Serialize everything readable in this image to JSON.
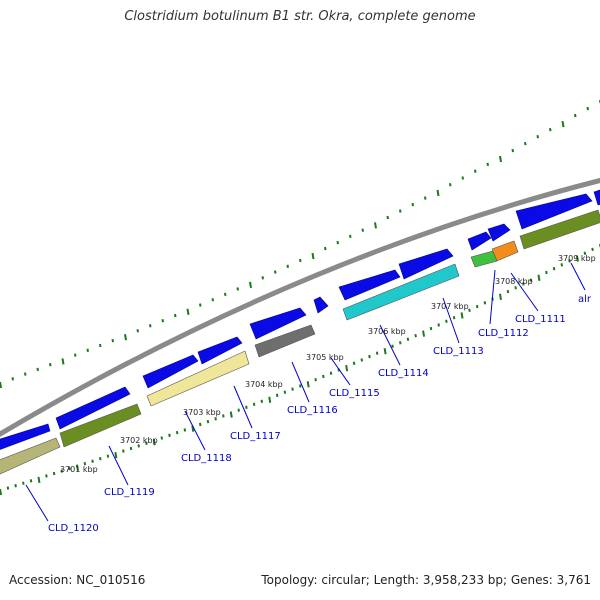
{
  "title": "Clostridium botulinum B1 str. Okra, complete genome",
  "footer": {
    "accession": "Accession: NC_010516",
    "summary": "Topology: circular; Length: 3,958,233 bp; Genes: 3,761"
  },
  "colors": {
    "backbone": "#8a8a8a",
    "tick": "#1a7a1a",
    "cds_forward": "#0a0ae6",
    "label_line": "#0000cc"
  },
  "kbp_labels": [
    "3701 kbp",
    "3702 kbp",
    "3703 kbp",
    "3704 kbp",
    "3705 kbp",
    "3706 kbp",
    "3707 kbp",
    "3708 kbp",
    "3709 kbp"
  ],
  "genes": [
    {
      "label": "CLD_1120",
      "color": "#b5b577"
    },
    {
      "label": "CLD_1119",
      "color": "#6b8e23"
    },
    {
      "label": "CLD_1118",
      "color": "#f0e69a"
    },
    {
      "label": "CLD_1117",
      "color": "#f0e69a"
    },
    {
      "label": "CLD_1116",
      "color": "#6e6e6e"
    },
    {
      "label": "CLD_1115",
      "color": "#20c8cc"
    },
    {
      "label": "CLD_1114",
      "color": "#20c8cc"
    },
    {
      "label": "CLD_1113",
      "color": "#20c8cc"
    },
    {
      "label": "CLD_1112",
      "color": "#3fc03f"
    },
    {
      "label": "CLD_1111",
      "color": "#f28c1c"
    },
    {
      "label": "alr",
      "color": "#6b8e23"
    }
  ]
}
